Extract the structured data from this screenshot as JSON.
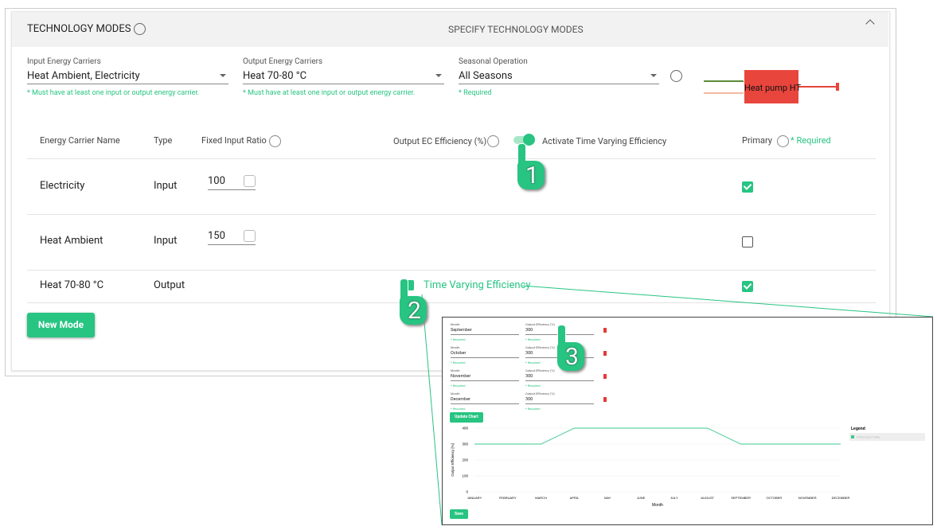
{
  "header": {
    "title": "TECHNOLOGY MODES",
    "subtitle": "SPECIFY TECHNOLOGY MODES"
  },
  "fields": [
    {
      "label": "Input Energy Carriers",
      "value": "Heat Ambient, Electricity",
      "hint": "* Must have at least one input or output energy carrier."
    },
    {
      "label": "Output Energy Carriers",
      "value": "Heat 70-80 °C",
      "hint": "* Must have at least one input or output energy carrier."
    },
    {
      "label": "Seasonal Operation",
      "value": "All Seasons",
      "hint": "* Required"
    }
  ],
  "diagram": {
    "label": "Heat pump HT"
  },
  "table": {
    "columns": [
      "Energy Carrier Name",
      "Type",
      "Fixed Input Ratio",
      "Output EC Efficiency (%)",
      "Activate Time Varying Efficiency",
      "Primary"
    ],
    "required": "* Required",
    "rows": [
      {
        "name": "Electricity",
        "type": "Input",
        "ratio": 100,
        "primary": true
      },
      {
        "name": "Heat Ambient",
        "type": "Input",
        "ratio": 150,
        "primary": false
      },
      {
        "name": "Heat 70-80 °C",
        "type": "Output",
        "link": "Time Varying Efficiency",
        "primary": true
      }
    ]
  },
  "button": "New Mode",
  "callouts": [
    "1",
    "2",
    "3"
  ],
  "inset": {
    "months": [
      {
        "label": "Month",
        "value": "September",
        "hint": "* Required",
        "eff_label": "Output Efficiency (%)",
        "eff_value": 300,
        "eff_hint": "* Required"
      },
      {
        "label": "Month",
        "value": "October",
        "hint": "* Required",
        "eff_label": "Output Efficiency (%)",
        "eff_value": 300,
        "eff_hint": "* Required"
      },
      {
        "label": "Month",
        "value": "November",
        "hint": "* Required",
        "eff_label": "Output Efficiency (%)",
        "eff_value": 300,
        "eff_hint": "* Required"
      },
      {
        "label": "Month",
        "value": "December",
        "hint": "* Required",
        "eff_label": "Output Efficiency (%)",
        "eff_value": 300,
        "eff_hint": "* Required"
      }
    ],
    "update": "Update Chart",
    "save": "Save",
    "chart": {
      "type": "line",
      "categories": [
        "JANUARY",
        "FEBRUARY",
        "MARCH",
        "APRIL",
        "MAY",
        "JUNE",
        "JULY",
        "AUGUST",
        "SEPTEMBER",
        "OCTOBER",
        "NOVEMBER",
        "DECEMBER"
      ],
      "series": [
        {
          "name": "Efficiency Profile",
          "color": "#3cc98e",
          "values": [
            300,
            300,
            300,
            400,
            400,
            400,
            400,
            400,
            300,
            300,
            300,
            300
          ]
        }
      ],
      "ylim": [
        0,
        400
      ],
      "yticks": [
        0,
        100,
        200,
        300,
        400
      ],
      "xlabel": "Month",
      "ylabel": "Output Efficiency [%]",
      "legend_title": "Legend",
      "grid": true
    }
  }
}
